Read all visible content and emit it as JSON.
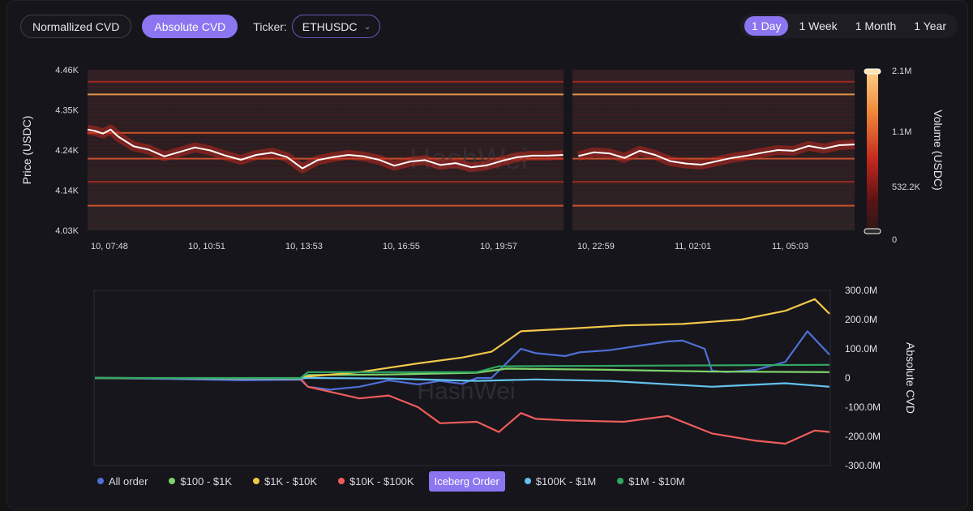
{
  "toolbar": {
    "normalized_label": "Normallized CVD",
    "absolute_label": "Absolute CVD",
    "ticker_label": "Ticker:",
    "ticker_value": "ETHUSDC"
  },
  "ranges": [
    {
      "label": "1 Day",
      "active": true
    },
    {
      "label": "1 Week",
      "active": false
    },
    {
      "label": "1 Month",
      "active": false
    },
    {
      "label": "1 Year",
      "active": false
    }
  ],
  "watermark": "HashWei",
  "colors": {
    "accent": "#8b75f0",
    "price_line": "#ffffff",
    "heat_low": "#2a1414",
    "heat_high": "#ffc27a"
  },
  "chart_data": [
    {
      "type": "heatmap",
      "ylabel": "Price (USDC)",
      "y_ticks": [
        "4.46K",
        "4.35K",
        "4.24K",
        "4.14K",
        "4.03K"
      ],
      "ylim": [
        4030,
        4460
      ],
      "x_ticks": [
        "10, 07:48",
        "10, 10:51",
        "10, 13:53",
        "10, 16:55",
        "10, 19:57",
        "10, 22:59",
        "11, 02:01",
        "11, 05:03"
      ],
      "colorbar": {
        "label": "Volume (USDC)",
        "ticks": [
          "2.1M",
          "1.1M",
          "532.2K",
          "0"
        ]
      },
      "price_series": [
        {
          "t": 0.0,
          "p": 4300
        },
        {
          "t": 0.01,
          "p": 4296
        },
        {
          "t": 0.02,
          "p": 4289
        },
        {
          "t": 0.03,
          "p": 4300
        },
        {
          "t": 0.04,
          "p": 4281
        },
        {
          "t": 0.06,
          "p": 4255
        },
        {
          "t": 0.08,
          "p": 4246
        },
        {
          "t": 0.1,
          "p": 4228
        },
        {
          "t": 0.12,
          "p": 4240
        },
        {
          "t": 0.14,
          "p": 4252
        },
        {
          "t": 0.16,
          "p": 4244
        },
        {
          "t": 0.18,
          "p": 4230
        },
        {
          "t": 0.2,
          "p": 4219
        },
        {
          "t": 0.22,
          "p": 4232
        },
        {
          "t": 0.24,
          "p": 4238
        },
        {
          "t": 0.26,
          "p": 4226
        },
        {
          "t": 0.28,
          "p": 4196
        },
        {
          "t": 0.3,
          "p": 4218
        },
        {
          "t": 0.32,
          "p": 4226
        },
        {
          "t": 0.34,
          "p": 4232
        },
        {
          "t": 0.36,
          "p": 4228
        },
        {
          "t": 0.38,
          "p": 4219
        },
        {
          "t": 0.4,
          "p": 4203
        },
        {
          "t": 0.42,
          "p": 4214
        },
        {
          "t": 0.44,
          "p": 4218
        },
        {
          "t": 0.46,
          "p": 4205
        },
        {
          "t": 0.48,
          "p": 4210
        },
        {
          "t": 0.5,
          "p": 4199
        },
        {
          "t": 0.52,
          "p": 4204
        },
        {
          "t": 0.54,
          "p": 4216
        },
        {
          "t": 0.56,
          "p": 4226
        },
        {
          "t": 0.58,
          "p": 4230
        },
        {
          "t": 0.6,
          "p": 4230
        },
        {
          "t": 0.62,
          "p": 4232
        },
        {
          "t": 0.64,
          "p": 4229
        },
        {
          "t": 0.66,
          "p": 4239
        },
        {
          "t": 0.68,
          "p": 4236
        },
        {
          "t": 0.7,
          "p": 4224
        },
        {
          "t": 0.72,
          "p": 4243
        },
        {
          "t": 0.74,
          "p": 4232
        },
        {
          "t": 0.76,
          "p": 4215
        },
        {
          "t": 0.78,
          "p": 4209
        },
        {
          "t": 0.8,
          "p": 4206
        },
        {
          "t": 0.82,
          "p": 4215
        },
        {
          "t": 0.84,
          "p": 4224
        },
        {
          "t": 0.86,
          "p": 4230
        },
        {
          "t": 0.88,
          "p": 4238
        },
        {
          "t": 0.9,
          "p": 4245
        },
        {
          "t": 0.92,
          "p": 4243
        },
        {
          "t": 0.94,
          "p": 4256
        },
        {
          "t": 0.96,
          "p": 4249
        },
        {
          "t": 0.98,
          "p": 4258
        },
        {
          "t": 1.0,
          "p": 4260
        }
      ],
      "levels": [
        {
          "p": 4394,
          "intensity": 0.75
        },
        {
          "p": 4291,
          "intensity": 0.55
        },
        {
          "p": 4222,
          "intensity": 0.45
        },
        {
          "p": 4096,
          "intensity": 0.5
        },
        {
          "p": 4428,
          "intensity": 0.25
        },
        {
          "p": 4160,
          "intensity": 0.3
        }
      ]
    },
    {
      "type": "line",
      "ylabel": "Absolute CVD",
      "y_ticks": [
        "300.0M",
        "200.0M",
        "100.0M",
        "0",
        "-100.0M",
        "-200.0M",
        "-300.0M"
      ],
      "ylim": [
        -300,
        300
      ],
      "y_unit": "M",
      "series": [
        {
          "name": "All order",
          "color": "#4f6fd6",
          "values": [
            {
              "t": 0.0,
              "v": 0
            },
            {
              "t": 0.1,
              "v": -3
            },
            {
              "t": 0.2,
              "v": -8
            },
            {
              "t": 0.28,
              "v": -6
            },
            {
              "t": 0.29,
              "v": -30
            },
            {
              "t": 0.32,
              "v": -40
            },
            {
              "t": 0.36,
              "v": -30
            },
            {
              "t": 0.4,
              "v": -8
            },
            {
              "t": 0.44,
              "v": -22
            },
            {
              "t": 0.47,
              "v": -10
            },
            {
              "t": 0.5,
              "v": -20
            },
            {
              "t": 0.52,
              "v": 0
            },
            {
              "t": 0.54,
              "v": 0
            },
            {
              "t": 0.56,
              "v": 50
            },
            {
              "t": 0.58,
              "v": 100
            },
            {
              "t": 0.6,
              "v": 85
            },
            {
              "t": 0.62,
              "v": 80
            },
            {
              "t": 0.64,
              "v": 75
            },
            {
              "t": 0.66,
              "v": 88
            },
            {
              "t": 0.7,
              "v": 95
            },
            {
              "t": 0.74,
              "v": 110
            },
            {
              "t": 0.78,
              "v": 125
            },
            {
              "t": 0.8,
              "v": 128
            },
            {
              "t": 0.83,
              "v": 100
            },
            {
              "t": 0.84,
              "v": 25
            },
            {
              "t": 0.86,
              "v": 20
            },
            {
              "t": 0.9,
              "v": 28
            },
            {
              "t": 0.94,
              "v": 55
            },
            {
              "t": 0.97,
              "v": 160
            },
            {
              "t": 1.0,
              "v": 80
            }
          ]
        },
        {
          "name": "$100 - $1K",
          "color": "#7ed36a",
          "values": [
            {
              "t": 0.0,
              "v": 0
            },
            {
              "t": 0.28,
              "v": -2
            },
            {
              "t": 0.29,
              "v": 10
            },
            {
              "t": 0.4,
              "v": 12
            },
            {
              "t": 0.52,
              "v": 18
            },
            {
              "t": 0.56,
              "v": 32
            },
            {
              "t": 0.7,
              "v": 28
            },
            {
              "t": 0.84,
              "v": 22
            },
            {
              "t": 1.0,
              "v": 20
            }
          ]
        },
        {
          "name": "$1K - $10K",
          "color": "#f2c84b",
          "values": [
            {
              "t": 0.0,
              "v": 0
            },
            {
              "t": 0.28,
              "v": -3
            },
            {
              "t": 0.29,
              "v": 5
            },
            {
              "t": 0.36,
              "v": 20
            },
            {
              "t": 0.44,
              "v": 50
            },
            {
              "t": 0.5,
              "v": 70
            },
            {
              "t": 0.54,
              "v": 90
            },
            {
              "t": 0.58,
              "v": 160
            },
            {
              "t": 0.64,
              "v": 168
            },
            {
              "t": 0.72,
              "v": 180
            },
            {
              "t": 0.8,
              "v": 185
            },
            {
              "t": 0.88,
              "v": 200
            },
            {
              "t": 0.94,
              "v": 230
            },
            {
              "t": 0.98,
              "v": 270
            },
            {
              "t": 1.0,
              "v": 220
            }
          ]
        },
        {
          "name": "$10K - $100K",
          "color": "#ee5d5b",
          "values": [
            {
              "t": 0.0,
              "v": 0
            },
            {
              "t": 0.28,
              "v": -2
            },
            {
              "t": 0.29,
              "v": -30
            },
            {
              "t": 0.36,
              "v": -70
            },
            {
              "t": 0.4,
              "v": -60
            },
            {
              "t": 0.44,
              "v": -100
            },
            {
              "t": 0.47,
              "v": -155
            },
            {
              "t": 0.52,
              "v": -150
            },
            {
              "t": 0.55,
              "v": -185
            },
            {
              "t": 0.58,
              "v": -120
            },
            {
              "t": 0.6,
              "v": -140
            },
            {
              "t": 0.64,
              "v": -145
            },
            {
              "t": 0.72,
              "v": -150
            },
            {
              "t": 0.78,
              "v": -130
            },
            {
              "t": 0.84,
              "v": -190
            },
            {
              "t": 0.9,
              "v": -215
            },
            {
              "t": 0.94,
              "v": -225
            },
            {
              "t": 0.98,
              "v": -180
            },
            {
              "t": 1.0,
              "v": -185
            }
          ]
        },
        {
          "name": "$100K - $1M",
          "color": "#63c2ee",
          "values": [
            {
              "t": 0.0,
              "v": 0
            },
            {
              "t": 0.28,
              "v": -2
            },
            {
              "t": 0.29,
              "v": 0
            },
            {
              "t": 0.4,
              "v": -2
            },
            {
              "t": 0.52,
              "v": -10
            },
            {
              "t": 0.6,
              "v": -5
            },
            {
              "t": 0.7,
              "v": -10
            },
            {
              "t": 0.84,
              "v": -30
            },
            {
              "t": 0.94,
              "v": -18
            },
            {
              "t": 1.0,
              "v": -30
            }
          ]
        },
        {
          "name": "$1M - $10M",
          "color": "#2fa862",
          "values": [
            {
              "t": 0.0,
              "v": 0
            },
            {
              "t": 0.28,
              "v": 0
            },
            {
              "t": 0.29,
              "v": 20
            },
            {
              "t": 0.52,
              "v": 20
            },
            {
              "t": 0.55,
              "v": 40
            },
            {
              "t": 1.0,
              "v": 45
            }
          ]
        }
      ],
      "legend_button": "Iceberg Order"
    }
  ]
}
